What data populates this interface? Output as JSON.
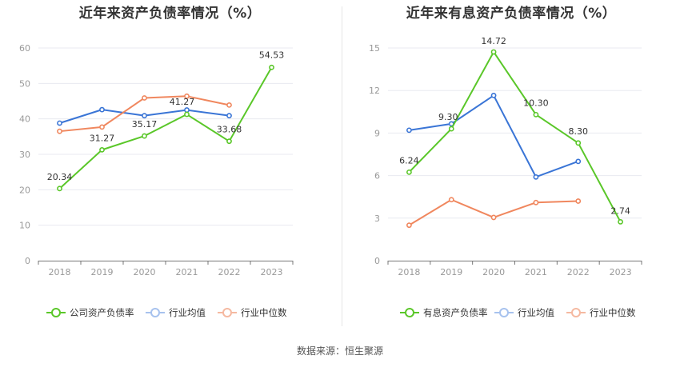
{
  "source": "数据来源：恒生聚源",
  "colors": {
    "green": "#5ac729",
    "blue": "#3a75d6",
    "orange": "#f0875e",
    "blue_legend": "#a7c2ee",
    "orange_legend": "#f5b9a1"
  },
  "chart_data": [
    {
      "type": "line",
      "title": "近年来资产负债率情况（%）",
      "categories": [
        "2018",
        "2019",
        "2020",
        "2021",
        "2022",
        "2023"
      ],
      "ylim": [
        0,
        60
      ],
      "yticks": [
        "0",
        "10",
        "20",
        "30",
        "40",
        "50",
        "60"
      ],
      "grid": true,
      "legend_position": "bottom",
      "series": [
        {
          "name": "公司资产负债率",
          "color": "#5ac729",
          "values": [
            20.34,
            31.27,
            35.17,
            41.27,
            33.68,
            54.53
          ],
          "labels": [
            "20.34",
            "31.27",
            "35.17",
            "41.27",
            "33.68",
            "54.53"
          ]
        },
        {
          "name": "行业均值",
          "color": "#3a75d6",
          "values": [
            38.8,
            42.6,
            40.9,
            42.5,
            40.9,
            null
          ],
          "labels": []
        },
        {
          "name": "行业中位数",
          "color": "#f0875e",
          "values": [
            36.5,
            37.7,
            45.9,
            46.4,
            43.9,
            null
          ],
          "labels": []
        }
      ]
    },
    {
      "type": "line",
      "title": "近年来有息资产负债率情况（%）",
      "categories": [
        "2018",
        "2019",
        "2020",
        "2021",
        "2022",
        "2023"
      ],
      "ylim": [
        0,
        15
      ],
      "yticks": [
        "0",
        "3",
        "6",
        "9",
        "12",
        "15"
      ],
      "grid": true,
      "legend_position": "bottom",
      "series": [
        {
          "name": "有息资产负债率",
          "color": "#5ac729",
          "values": [
            6.24,
            9.3,
            14.72,
            10.3,
            8.3,
            2.74
          ],
          "labels": [
            "6.24",
            "9.30",
            "14.72",
            "10.30",
            "8.30",
            "2.74"
          ]
        },
        {
          "name": "行业均值",
          "color": "#3a75d6",
          "values": [
            9.2,
            9.65,
            11.65,
            5.9,
            7.0,
            null
          ],
          "labels": []
        },
        {
          "name": "行业中位数",
          "color": "#f0875e",
          "values": [
            2.5,
            4.3,
            3.05,
            4.1,
            4.2,
            null
          ],
          "labels": []
        }
      ]
    }
  ]
}
